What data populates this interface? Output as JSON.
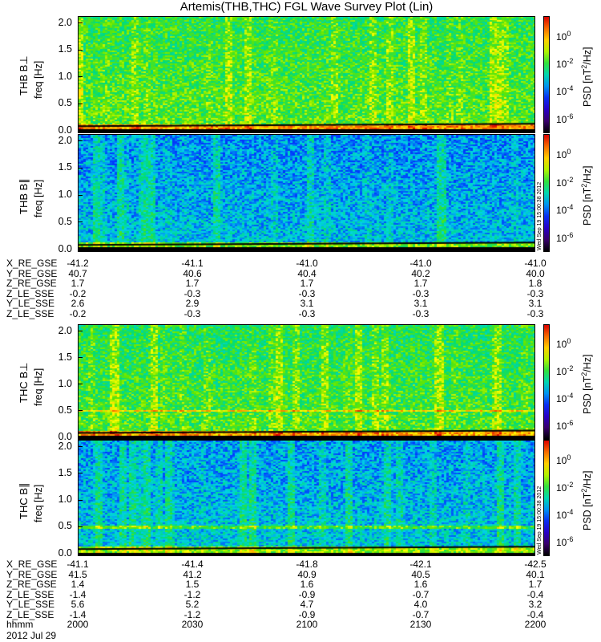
{
  "title": "Artemis(THB,THC) FGL Wave Survey Plot (Lin)",
  "stamp": "Wed Sep 19 15:00:38 2012",
  "chart_data": {
    "type": "heatmap",
    "title": "Artemis(THB,THC) FGL Wave Survey Plot (Lin)",
    "yticks": [
      "0.0",
      "0.5",
      "1.0",
      "1.5",
      "2.0"
    ],
    "ylim": [
      0,
      2.0
    ],
    "colorbar": {
      "label_main": "PSD [nT",
      "label_sup": "2",
      "label_tail": "/Hz]",
      "ticks": [
        {
          "base": "10",
          "exp": "0"
        },
        {
          "base": "10",
          "exp": "-2"
        },
        {
          "base": "10",
          "exp": "-4"
        },
        {
          "base": "10",
          "exp": "-6"
        }
      ],
      "range_log10": [
        -7,
        1.5
      ]
    },
    "panels": [
      {
        "name": "THB B⊥",
        "ylabel": "THB B⊥",
        "yunit": "freq [Hz]",
        "bg": -1.6,
        "low_band": 0.1
      },
      {
        "name": "THB B∥",
        "ylabel": "THB B∥",
        "yunit": "freq [Hz]",
        "bg": -3.2,
        "low_band": 0.1
      },
      {
        "name": "THC B⊥",
        "ylabel": "THC B⊥",
        "yunit": "freq [Hz]",
        "bg": -1.7,
        "low_band": 0.1,
        "line": 0.5
      },
      {
        "name": "THC B∥",
        "ylabel": "THC B∥",
        "yunit": "freq [Hz]",
        "bg": -3.1,
        "low_band": 0.1,
        "line": 0.5
      }
    ]
  },
  "ephem_thb": {
    "labels": [
      "X_RE_GSE",
      "Y_RE_GSE",
      "Z_RE_GSE",
      "Z_LE_SSE",
      "Y_LE_SSE",
      "Z_LE_SSE"
    ],
    "values": [
      [
        "-41.2",
        "-41.1",
        "-41.0",
        "-41.0",
        "-41.0"
      ],
      [
        "40.7",
        "40.6",
        "40.4",
        "40.2",
        "40.0"
      ],
      [
        "1.7",
        "1.7",
        "1.7",
        "1.7",
        "1.8"
      ],
      [
        "-0.2",
        "-0.3",
        "-0.3",
        "-0.3",
        "-0.3"
      ],
      [
        "2.6",
        "2.9",
        "3.1",
        "3.1",
        "3.1"
      ],
      [
        "-0.2",
        "-0.3",
        "-0.3",
        "-0.3",
        "-0.3"
      ]
    ]
  },
  "ephem_thc": {
    "labels": [
      "X_RE_GSE",
      "Y_RE_GSE",
      "Z_RE_GSE",
      "Z_LE_SSE",
      "Y_LE_SSE",
      "Z_LE_SSE",
      "hhmm"
    ],
    "values": [
      [
        "-41.1",
        "-41.4",
        "-41.8",
        "-42.1",
        "-42.5"
      ],
      [
        "41.5",
        "41.2",
        "40.9",
        "40.5",
        "40.1"
      ],
      [
        "1.4",
        "1.5",
        "1.6",
        "1.6",
        "1.7"
      ],
      [
        "-1.4",
        "-1.2",
        "-0.9",
        "-0.7",
        "-0.4"
      ],
      [
        "5.6",
        "5.2",
        "4.7",
        "4.0",
        "3.2"
      ],
      [
        "-1.4",
        "-1.2",
        "-0.9",
        "-0.7",
        "-0.4"
      ],
      [
        "2000",
        "2030",
        "2100",
        "2130",
        "2200"
      ]
    ]
  },
  "date": "2012 Jul 29"
}
